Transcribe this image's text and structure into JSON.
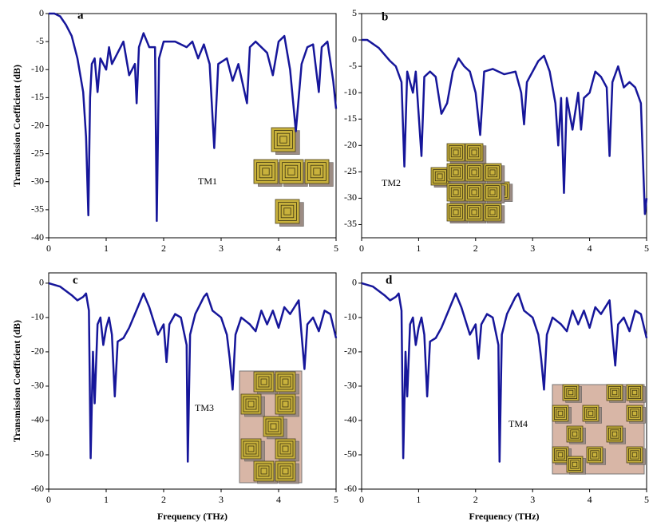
{
  "chart_data": [
    {
      "type": "line",
      "panel_label": "a",
      "annotation": "TM1",
      "ylabel": "Transmission Coefficient (dB)",
      "x": [
        0,
        0.1,
        0.2,
        0.3,
        0.4,
        0.5,
        0.6,
        0.65,
        0.69,
        0.72,
        0.75,
        0.8,
        0.85,
        0.9,
        1.0,
        1.05,
        1.1,
        1.2,
        1.3,
        1.4,
        1.5,
        1.53,
        1.57,
        1.65,
        1.75,
        1.85,
        1.88,
        1.92,
        2.0,
        2.2,
        2.4,
        2.5,
        2.6,
        2.7,
        2.8,
        2.88,
        2.95,
        3.1,
        3.2,
        3.3,
        3.45,
        3.5,
        3.6,
        3.8,
        3.9,
        4.0,
        4.1,
        4.2,
        4.3,
        4.4,
        4.5,
        4.6,
        4.7,
        4.75,
        4.85,
        4.95,
        5.0
      ],
      "series": [
        {
          "color": "#16169a",
          "values": [
            0,
            0,
            -0.5,
            -2,
            -4,
            -8,
            -14,
            -22,
            -36,
            -15,
            -9,
            -8,
            -14,
            -8,
            -10,
            -6,
            -9,
            -7,
            -5,
            -11,
            -9,
            -16,
            -6,
            -3.5,
            -6,
            -6,
            -37,
            -8,
            -5,
            -5,
            -6,
            -5,
            -8,
            -5.5,
            -9,
            -24,
            -9,
            -8,
            -12,
            -9,
            -16,
            -6,
            -5,
            -7,
            -11,
            -5,
            -4,
            -10,
            -21,
            -9,
            -6,
            -5.5,
            -14,
            -6,
            -5,
            -12,
            -17
          ]
        }
      ],
      "xlim": [
        0,
        5
      ],
      "ylim": [
        -40,
        0
      ],
      "xticks": [
        0,
        1,
        2,
        3,
        4,
        5
      ],
      "yticks": [
        0,
        -5,
        -10,
        -15,
        -20,
        -25,
        -30,
        -35,
        -40
      ]
    },
    {
      "type": "line",
      "panel_label": "b",
      "annotation": "TM2",
      "x": [
        0,
        0.1,
        0.3,
        0.5,
        0.6,
        0.7,
        0.75,
        0.8,
        0.9,
        0.95,
        1.05,
        1.1,
        1.2,
        1.3,
        1.4,
        1.5,
        1.6,
        1.7,
        1.8,
        1.9,
        2.0,
        2.08,
        2.15,
        2.3,
        2.5,
        2.7,
        2.8,
        2.85,
        2.9,
        3.1,
        3.2,
        3.3,
        3.4,
        3.45,
        3.5,
        3.55,
        3.6,
        3.7,
        3.8,
        3.85,
        3.9,
        4.0,
        4.1,
        4.2,
        4.3,
        4.35,
        4.4,
        4.5,
        4.6,
        4.7,
        4.8,
        4.9,
        4.97,
        5.0
      ],
      "series": [
        {
          "color": "#16169a",
          "values": [
            0,
            0,
            -1.5,
            -4,
            -5,
            -8,
            -24,
            -6,
            -10,
            -6,
            -22,
            -7,
            -6,
            -7,
            -14,
            -12,
            -6,
            -3.5,
            -5,
            -6,
            -10,
            -18,
            -6,
            -5.5,
            -6.5,
            -6,
            -10,
            -16,
            -8,
            -4,
            -3,
            -6,
            -12,
            -20,
            -11,
            -29,
            -11,
            -17,
            -10,
            -17,
            -11,
            -10,
            -6,
            -7,
            -9,
            -22,
            -8,
            -5,
            -9,
            -8,
            -9,
            -12,
            -33,
            -30
          ]
        }
      ],
      "xlim": [
        0,
        5
      ],
      "ylim": [
        -37.5,
        5
      ],
      "xticks": [
        0,
        1,
        2,
        3,
        4,
        5
      ],
      "yticks": [
        5,
        0,
        -5,
        -10,
        -15,
        -20,
        -25,
        -30,
        -35
      ]
    },
    {
      "type": "line",
      "panel_label": "c",
      "annotation": "TM3",
      "ylabel": "Transmission Coefficient (dB)",
      "xlabel": "Frequency (THz)",
      "x": [
        0,
        0.2,
        0.4,
        0.5,
        0.6,
        0.65,
        0.7,
        0.73,
        0.77,
        0.8,
        0.85,
        0.9,
        0.95,
        1.0,
        1.05,
        1.1,
        1.15,
        1.2,
        1.3,
        1.4,
        1.5,
        1.6,
        1.65,
        1.75,
        1.9,
        2.0,
        2.05,
        2.1,
        2.2,
        2.3,
        2.4,
        2.42,
        2.46,
        2.55,
        2.7,
        2.75,
        2.85,
        3.0,
        3.1,
        3.15,
        3.2,
        3.25,
        3.35,
        3.5,
        3.6,
        3.7,
        3.8,
        3.9,
        4.0,
        4.1,
        4.2,
        4.35,
        4.4,
        4.45,
        4.5,
        4.6,
        4.7,
        4.8,
        4.9,
        5.0
      ],
      "series": [
        {
          "color": "#16169a",
          "values": [
            0,
            -1,
            -3.5,
            -5,
            -4,
            -3,
            -8,
            -51,
            -20,
            -35,
            -12,
            -10,
            -18,
            -13,
            -10,
            -15,
            -33,
            -17,
            -16,
            -13,
            -9,
            -5,
            -3,
            -7,
            -15,
            -12,
            -23,
            -12,
            -9,
            -10,
            -18,
            -52,
            -15,
            -9,
            -4,
            -3,
            -8,
            -10,
            -15,
            -22,
            -31,
            -15,
            -10,
            -12,
            -14,
            -8,
            -12,
            -8,
            -13,
            -7,
            -9,
            -5,
            -15,
            -25,
            -12,
            -10,
            -14,
            -8,
            -9,
            -16
          ]
        }
      ],
      "xlim": [
        0,
        5
      ],
      "ylim": [
        -60,
        3
      ],
      "xticks": [
        0,
        1,
        2,
        3,
        4,
        5
      ],
      "yticks": [
        0,
        -10,
        -20,
        -30,
        -40,
        -50,
        -60
      ]
    },
    {
      "type": "line",
      "panel_label": "d",
      "annotation": "TM4",
      "xlabel": "Frequency (THz)",
      "x": [
        0,
        0.2,
        0.4,
        0.5,
        0.6,
        0.65,
        0.7,
        0.73,
        0.77,
        0.8,
        0.85,
        0.9,
        0.95,
        1.0,
        1.05,
        1.1,
        1.15,
        1.2,
        1.3,
        1.4,
        1.5,
        1.6,
        1.65,
        1.75,
        1.9,
        2.0,
        2.05,
        2.1,
        2.2,
        2.3,
        2.4,
        2.42,
        2.46,
        2.55,
        2.7,
        2.75,
        2.85,
        3.0,
        3.1,
        3.15,
        3.2,
        3.25,
        3.35,
        3.5,
        3.6,
        3.7,
        3.8,
        3.9,
        4.0,
        4.1,
        4.2,
        4.35,
        4.4,
        4.45,
        4.5,
        4.6,
        4.7,
        4.8,
        4.9,
        5.0
      ],
      "series": [
        {
          "color": "#16169a",
          "values": [
            0,
            -1,
            -3.5,
            -5,
            -4,
            -3,
            -8,
            -51,
            -20,
            -33,
            -12,
            -10,
            -18,
            -13,
            -10,
            -15,
            -33,
            -17,
            -16,
            -13,
            -9,
            -5,
            -3,
            -7,
            -15,
            -12,
            -22,
            -12,
            -9,
            -10,
            -18,
            -52,
            -15,
            -9,
            -4,
            -3,
            -8,
            -10,
            -15,
            -22,
            -31,
            -15,
            -10,
            -12,
            -14,
            -8,
            -12,
            -8,
            -13,
            -7,
            -9,
            -5,
            -15,
            -24,
            -12,
            -10,
            -14,
            -8,
            -9,
            -16
          ]
        }
      ],
      "xlim": [
        0,
        5
      ],
      "ylim": [
        -60,
        3
      ],
      "xticks": [
        0,
        1,
        2,
        3,
        4,
        5
      ],
      "yticks": [
        0,
        -10,
        -20,
        -30,
        -40,
        -50,
        -60
      ]
    }
  ]
}
